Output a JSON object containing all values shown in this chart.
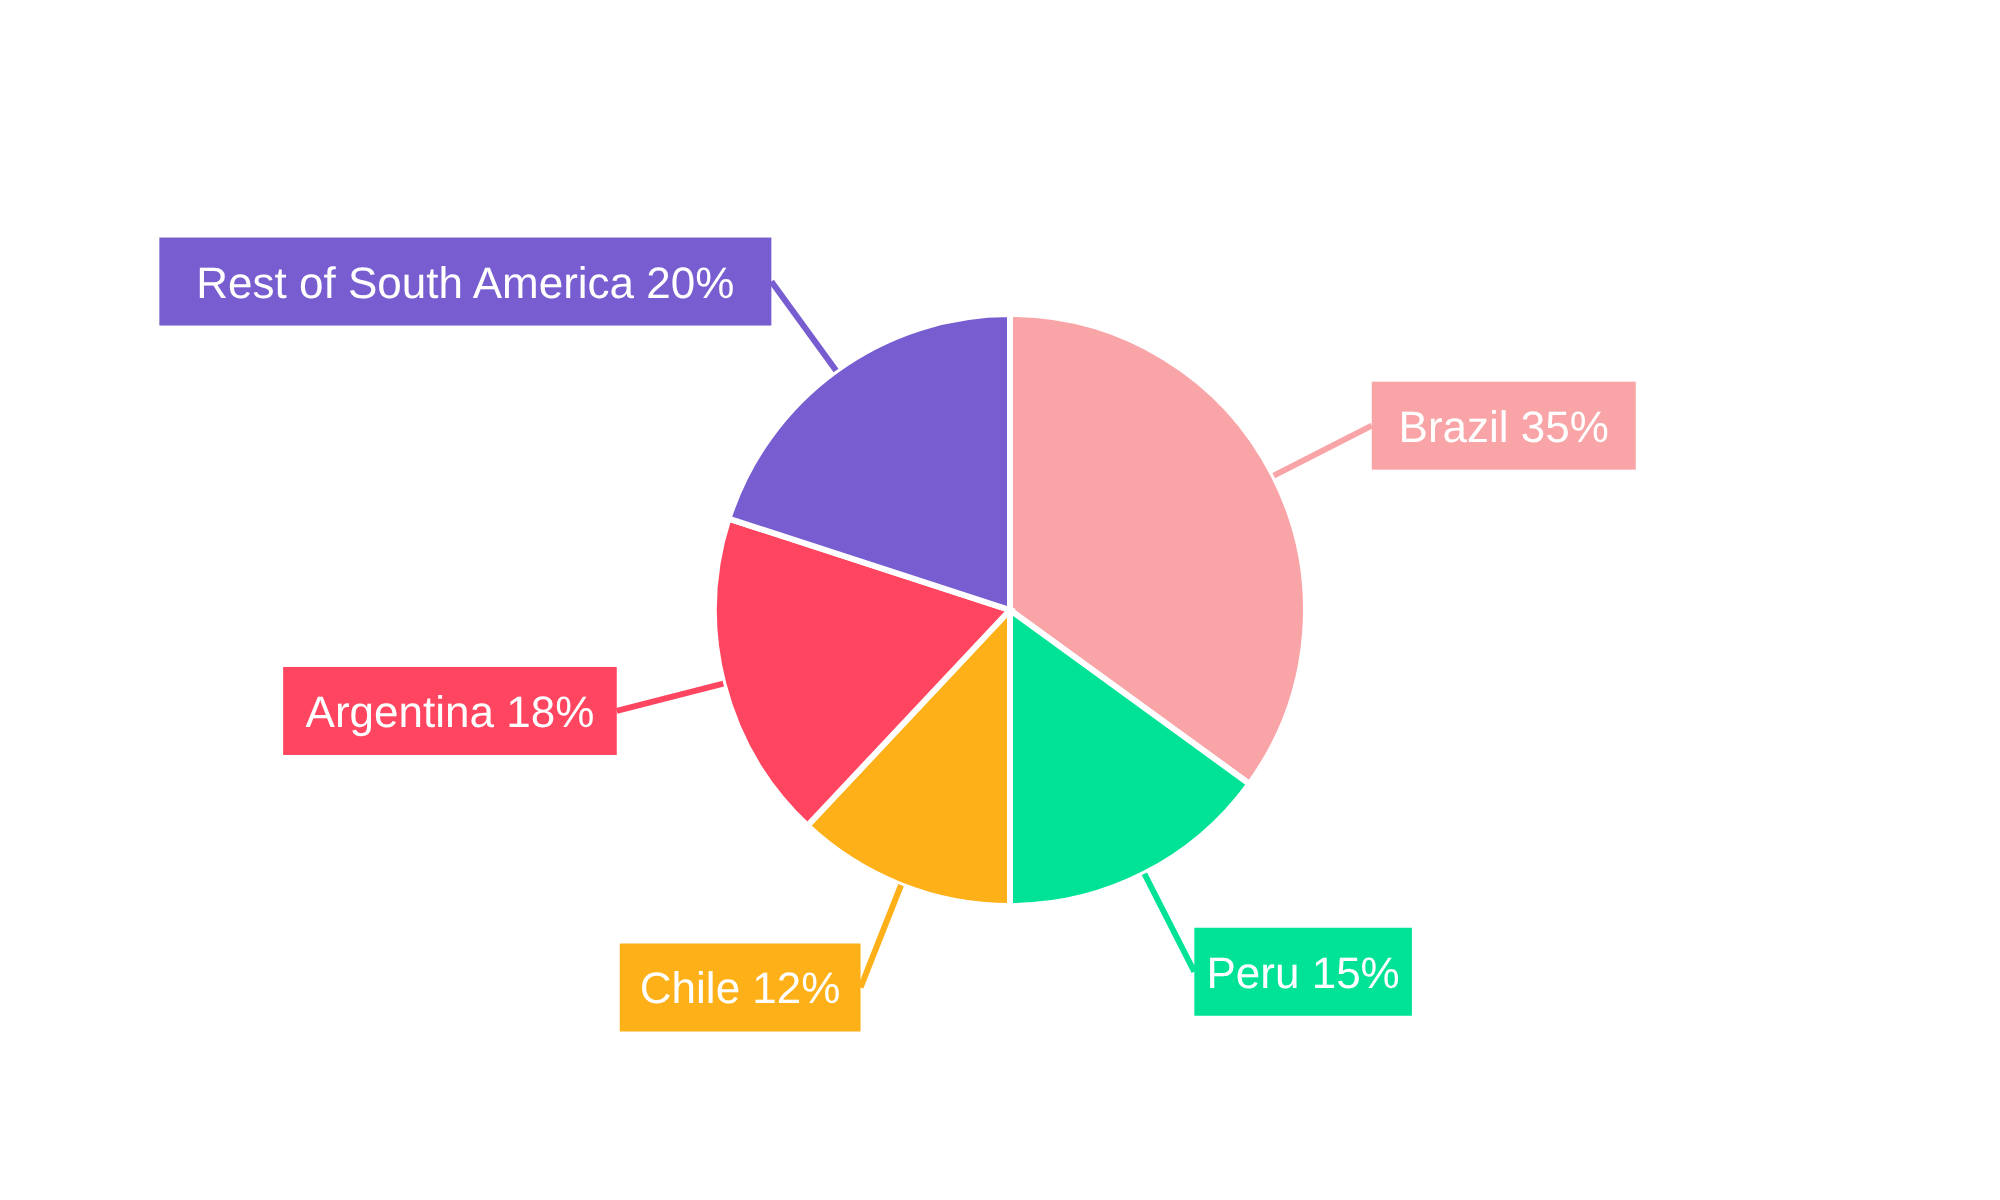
{
  "chart_data": {
    "type": "pie",
    "categories": [
      "Brazil",
      "Peru",
      "Chile",
      "Argentina",
      "Rest of South America"
    ],
    "values": [
      35,
      15,
      12,
      18,
      20
    ],
    "value_labels": [
      "35%",
      "15%",
      "12%",
      "18%",
      "20%"
    ],
    "colors": [
      "#f9a5a7",
      "#00e396",
      "#feb019",
      "#ff4560",
      "#775dd0"
    ]
  }
}
